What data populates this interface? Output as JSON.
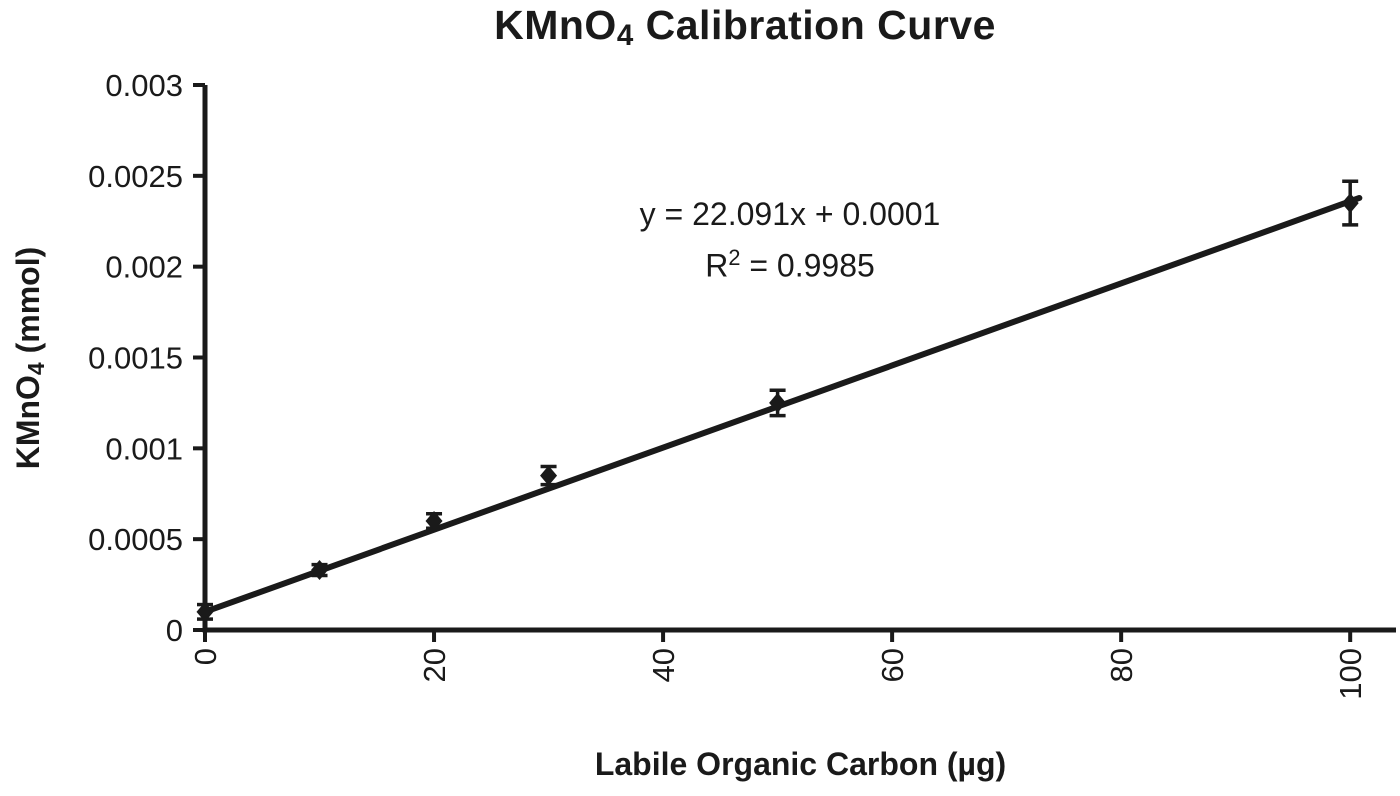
{
  "figure": {
    "background": "#ffffff",
    "ink_color": "#1a1a1a"
  },
  "chart": {
    "title": {
      "prefix": "KMnO",
      "subscript": "4",
      "suffix": " Calibration Curve"
    },
    "y_axis": {
      "label": {
        "prefix": "KMnO",
        "subscript": "4",
        "suffix": " (mmol)"
      }
    },
    "x_axis": {
      "label": "Labile Organic Carbon (µg)"
    },
    "annotation": {
      "equation": "y = 22.091x + 0.0001",
      "r_squared": {
        "prefix": "R",
        "superscript": "2",
        "suffix": " = 0.9985"
      }
    }
  },
  "chart_data": {
    "type": "scatter",
    "title": "KMnO4 Calibration Curve",
    "xlabel": "Labile Organic Carbon (µg)",
    "ylabel": "KMnO4 (mmol)",
    "x": [
      0,
      10,
      20,
      30,
      50,
      100
    ],
    "y": [
      0.0001,
      0.00033,
      0.0006,
      0.00085,
      0.00125,
      0.00235
    ],
    "yerr": [
      4e-05,
      3e-05,
      4e-05,
      5e-05,
      7e-05,
      0.00012
    ],
    "xlim": [
      0,
      104
    ],
    "ylim": [
      0,
      0.003
    ],
    "xticks": [
      0,
      20,
      40,
      60,
      80,
      100
    ],
    "yticks": [
      0,
      0.0005,
      0.001,
      0.0015,
      0.002,
      0.0025,
      0.003
    ],
    "trendline": {
      "equation": "y = 22.091x + 0.0001",
      "r_squared": 0.9985,
      "slope_per_ug": 2.26e-05,
      "intercept": 0.0001,
      "x_range": [
        0,
        100.8
      ]
    },
    "marker": "diamond",
    "color": "#1a1a1a",
    "grid": false,
    "legend": null
  }
}
